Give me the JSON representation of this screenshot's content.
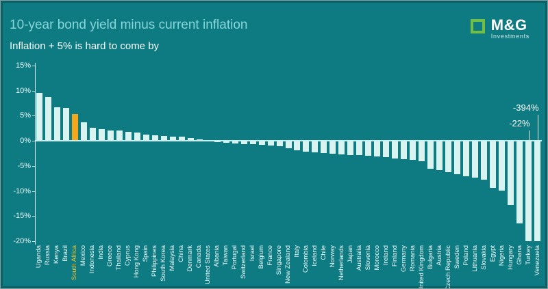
{
  "logo": {
    "name": "M&G",
    "subtext": "Investments"
  },
  "colors": {
    "background": "#0e7a81",
    "bar": "#d9f3f1",
    "highlight_bar": "#f6a81c",
    "title_text": "#87d6da",
    "subtitle_text": "#f4fcfc",
    "axis": "#cdeeec",
    "highlight_label": "#f2c12e",
    "logo_green": "#72bf44"
  },
  "chart_data": {
    "type": "bar",
    "title": "10-year bond yield minus current inflation",
    "subtitle": "Inflation + 5% is hard to come by",
    "ylim": [
      -20,
      15
    ],
    "yticks": [
      15,
      10,
      5,
      0,
      -5,
      -10,
      -15,
      -20
    ],
    "ytick_suffix": "%",
    "grid": false,
    "legend": "none",
    "highlight_category": "South Africa",
    "categories": [
      "Uganda",
      "Russia",
      "Kenya",
      "Brazil",
      "South Africa",
      "Mexico",
      "Indonesia",
      "India",
      "Greece",
      "Thailand",
      "Cyprus",
      "Hong Kong",
      "Spain",
      "Philippines",
      "South Korea",
      "Malaysia",
      "China",
      "Denmark",
      "Canada",
      "United States",
      "Albania",
      "Taiwan",
      "Portugal",
      "Switzerland",
      "Israel",
      "Belgium",
      "France",
      "Singapore",
      "New Zealand",
      "Italy",
      "Colombia",
      "Iceland",
      "Chile",
      "Norway",
      "Netherlands",
      "Japan",
      "Australia",
      "Slovenia",
      "Morocco",
      "Ireland",
      "Finland",
      "Germany",
      "Romania",
      "United Kingdom",
      "Bulgaria",
      "Austria",
      "Czech Republic",
      "Sweden",
      "Poland",
      "Lithuania",
      "Slovakia",
      "Egypt",
      "Nigeria",
      "Hungary",
      "Ghana",
      "Turkey",
      "Venezuela"
    ],
    "values": [
      9.6,
      8.7,
      6.7,
      6.5,
      5.3,
      3.7,
      2.6,
      2.4,
      2.1,
      2.0,
      1.8,
      1.6,
      1.3,
      1.1,
      1.0,
      0.9,
      0.8,
      0.5,
      0.3,
      -0.1,
      -0.2,
      -0.4,
      -0.5,
      -0.6,
      -0.7,
      -0.8,
      -0.9,
      -1.1,
      -1.5,
      -1.9,
      -2.2,
      -2.3,
      -2.5,
      -2.6,
      -2.7,
      -2.8,
      -2.9,
      -3.0,
      -3.1,
      -3.2,
      -3.5,
      -3.6,
      -3.8,
      -4.0,
      -5.6,
      -5.8,
      -6.3,
      -6.7,
      -7.0,
      -7.4,
      -7.7,
      -9.4,
      -9.9,
      -12.8,
      -16.4,
      -22,
      -394
    ],
    "clipped_value_annotations": [
      {
        "category": "Venezuela",
        "text": "-394%"
      },
      {
        "category": "Turkey",
        "text": "-22%"
      }
    ]
  }
}
